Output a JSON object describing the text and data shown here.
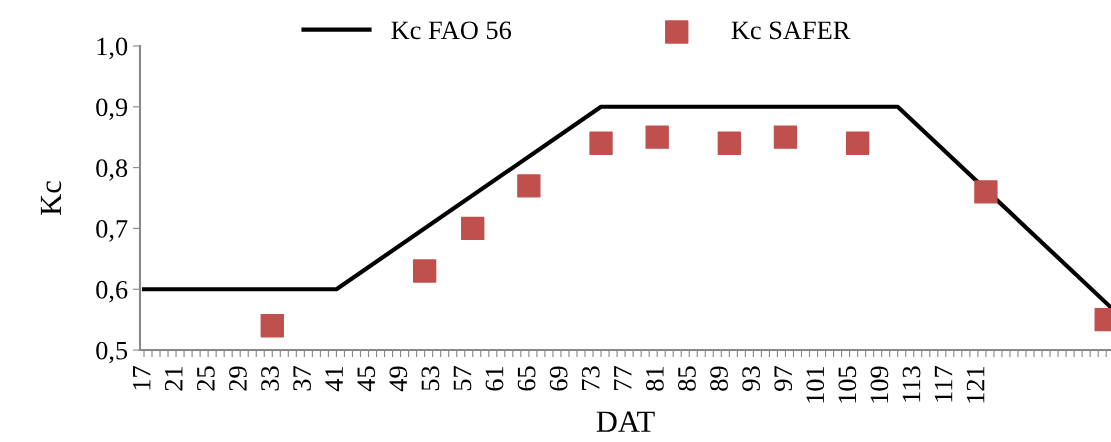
{
  "chart_data": {
    "type": "line",
    "xlabel": "DAT",
    "ylabel": "Kc",
    "xlim": [
      16.5,
      137.6
    ],
    "xticks": [
      {
        "value": 17,
        "label": "17"
      },
      {
        "value": 18,
        "label": null
      },
      {
        "value": 19,
        "label": null
      },
      {
        "value": 20,
        "label": null
      },
      {
        "value": 21,
        "label": "21"
      },
      {
        "value": 22,
        "label": null
      },
      {
        "value": 23,
        "label": null
      },
      {
        "value": 24,
        "label": null
      },
      {
        "value": 25,
        "label": "25"
      },
      {
        "value": 26,
        "label": null
      },
      {
        "value": 27,
        "label": null
      },
      {
        "value": 28,
        "label": null
      },
      {
        "value": 29,
        "label": "29"
      },
      {
        "value": 30,
        "label": null
      },
      {
        "value": 31,
        "label": null
      },
      {
        "value": 32,
        "label": null
      },
      {
        "value": 33,
        "label": "33"
      },
      {
        "value": 34,
        "label": null
      },
      {
        "value": 35,
        "label": null
      },
      {
        "value": 36,
        "label": null
      },
      {
        "value": 37,
        "label": "37"
      },
      {
        "value": 38,
        "label": null
      },
      {
        "value": 39,
        "label": null
      },
      {
        "value": 40,
        "label": null
      },
      {
        "value": 41,
        "label": "41"
      },
      {
        "value": 42,
        "label": null
      },
      {
        "value": 43,
        "label": null
      },
      {
        "value": 44,
        "label": null
      },
      {
        "value": 45,
        "label": "45"
      },
      {
        "value": 46,
        "label": null
      },
      {
        "value": 47,
        "label": null
      },
      {
        "value": 48,
        "label": null
      },
      {
        "value": 49,
        "label": "49"
      },
      {
        "value": 50,
        "label": null
      },
      {
        "value": 51,
        "label": null
      },
      {
        "value": 52,
        "label": null
      },
      {
        "value": 53,
        "label": "53"
      },
      {
        "value": 54,
        "label": null
      },
      {
        "value": 55,
        "label": null
      },
      {
        "value": 56,
        "label": null
      },
      {
        "value": 57,
        "label": "57"
      },
      {
        "value": 58,
        "label": null
      },
      {
        "value": 59,
        "label": null
      },
      {
        "value": 60,
        "label": null
      },
      {
        "value": 61,
        "label": "61"
      },
      {
        "value": 62,
        "label": null
      },
      {
        "value": 63,
        "label": null
      },
      {
        "value": 64,
        "label": null
      },
      {
        "value": 65,
        "label": "65"
      },
      {
        "value": 66,
        "label": null
      },
      {
        "value": 67,
        "label": null
      },
      {
        "value": 68,
        "label": null
      },
      {
        "value": 69,
        "label": "69"
      },
      {
        "value": 70,
        "label": null
      },
      {
        "value": 71,
        "label": null
      },
      {
        "value": 72,
        "label": null
      },
      {
        "value": 73,
        "label": "73"
      },
      {
        "value": 74,
        "label": null
      },
      {
        "value": 75,
        "label": null
      },
      {
        "value": 76,
        "label": null
      },
      {
        "value": 77,
        "label": "77"
      },
      {
        "value": 78,
        "label": null
      },
      {
        "value": 79,
        "label": null
      },
      {
        "value": 80,
        "label": null
      },
      {
        "value": 81,
        "label": "81"
      },
      {
        "value": 82,
        "label": null
      },
      {
        "value": 83,
        "label": null
      },
      {
        "value": 84,
        "label": null
      },
      {
        "value": 85,
        "label": "85"
      },
      {
        "value": 86,
        "label": null
      },
      {
        "value": 87,
        "label": null
      },
      {
        "value": 88,
        "label": null
      },
      {
        "value": 89,
        "label": "89"
      },
      {
        "value": 90,
        "label": null
      },
      {
        "value": 91,
        "label": null
      },
      {
        "value": 92,
        "label": null
      },
      {
        "value": 93,
        "label": "93"
      },
      {
        "value": 94,
        "label": null
      },
      {
        "value": 95,
        "label": null
      },
      {
        "value": 96,
        "label": null
      },
      {
        "value": 97,
        "label": "97"
      },
      {
        "value": 98,
        "label": null
      },
      {
        "value": 99,
        "label": null
      },
      {
        "value": 100,
        "label": null
      },
      {
        "value": 101,
        "label": "101"
      },
      {
        "value": 102,
        "label": null
      },
      {
        "value": 103,
        "label": null
      },
      {
        "value": 104,
        "label": null
      },
      {
        "value": 105,
        "label": "105"
      },
      {
        "value": 106,
        "label": null
      },
      {
        "value": 107,
        "label": null
      },
      {
        "value": 108,
        "label": null
      },
      {
        "value": 109,
        "label": "109"
      },
      {
        "value": 110,
        "label": null
      },
      {
        "value": 111,
        "label": null
      },
      {
        "value": 112,
        "label": null
      },
      {
        "value": 113,
        "label": "113"
      },
      {
        "value": 114,
        "label": null
      },
      {
        "value": 115,
        "label": null
      },
      {
        "value": 116,
        "label": null
      },
      {
        "value": 117,
        "label": "117"
      },
      {
        "value": 118,
        "label": null
      },
      {
        "value": 119,
        "label": null
      },
      {
        "value": 120,
        "label": null
      },
      {
        "value": 121,
        "label": "121"
      },
      {
        "value": 122,
        "label": null
      },
      {
        "value": 123,
        "label": null
      },
      {
        "value": 124,
        "label": null
      },
      {
        "value": 125,
        "label": null
      },
      {
        "value": 126,
        "label": null
      },
      {
        "value": 127,
        "label": null
      },
      {
        "value": 128,
        "label": null
      },
      {
        "value": 129,
        "label": null
      },
      {
        "value": 130,
        "label": null
      },
      {
        "value": 131,
        "label": null
      },
      {
        "value": 132,
        "label": null
      },
      {
        "value": 133,
        "label": null
      },
      {
        "value": 134,
        "label": null
      },
      {
        "value": 135,
        "label": null
      },
      {
        "value": 136,
        "label": null
      },
      {
        "value": 137,
        "label": null
      }
    ],
    "ylim": [
      0.5,
      1.0
    ],
    "yticks": [
      {
        "value": 0.5,
        "label": "0,5"
      },
      {
        "value": 0.6,
        "label": "0,6"
      },
      {
        "value": 0.7,
        "label": "0,7"
      },
      {
        "value": 0.8,
        "label": "0,8"
      },
      {
        "value": 0.9,
        "label": "0,9"
      },
      {
        "value": 1.0,
        "label": "1,0"
      }
    ],
    "grid": false,
    "legend": "top",
    "series": [
      {
        "name": "Kc FAO 56",
        "color": "#000000",
        "marker": "none",
        "line_style": "solid",
        "x": [
          17,
          41,
          74,
          111,
          137.6
        ],
        "values": [
          0.6,
          0.6,
          0.9,
          0.9,
          0.57
        ]
      },
      {
        "name": "Kc SAFER",
        "type": "scatter",
        "color": "#c0504d",
        "marker": "square",
        "x": [
          33,
          52,
          58,
          65,
          74,
          81,
          90,
          97,
          106,
          122,
          137
        ],
        "values": [
          0.54,
          0.63,
          0.7,
          0.77,
          0.84,
          0.85,
          0.84,
          0.85,
          0.84,
          0.76,
          0.55
        ]
      }
    ]
  }
}
